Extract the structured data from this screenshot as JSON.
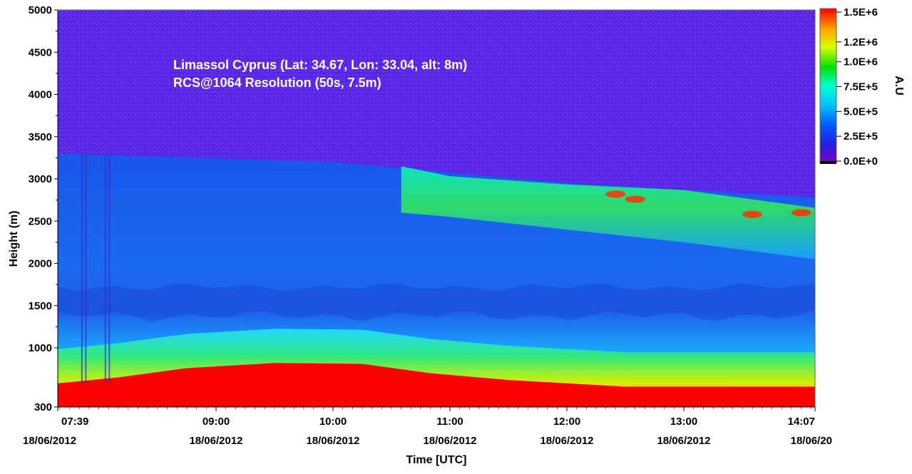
{
  "chart_data": {
    "type": "heatmap",
    "annotation": {
      "line1": "Limassol Cyprus (Lat: 34.67, Lon: 33.04, alt: 8m)",
      "line2": "RCS@1064 Resolution (50s, 7.5m)"
    },
    "xlabel": "Time [UTC]",
    "ylabel": "Height (m)",
    "colorbar_label": "A.U",
    "xlim": [
      "07:39",
      "14:07"
    ],
    "ylim": [
      300,
      5000
    ],
    "x_ticks": [
      {
        "time": "07:39",
        "date": "18/06/2012"
      },
      {
        "time": "09:00",
        "date": "18/06/2012"
      },
      {
        "time": "10:00",
        "date": "18/06/2012"
      },
      {
        "time": "11:00",
        "date": "18/06/2012"
      },
      {
        "time": "12:00",
        "date": "18/06/2012"
      },
      {
        "time": "13:00",
        "date": "18/06/2012"
      },
      {
        "time": "14:07",
        "date": "18/06/20"
      }
    ],
    "y_ticks": [
      5000,
      4500,
      4000,
      3500,
      3000,
      2500,
      2000,
      1500,
      1000,
      300
    ],
    "colorbar_ticks": [
      "1.5E+6",
      "1.2E+6",
      "1.0E+6",
      "7.5E+5",
      "5.0E+5",
      "2.5E+5",
      "0.0E+0"
    ],
    "colorbar_values": [
      1500000,
      1200000,
      1000000,
      750000,
      500000,
      250000,
      0
    ],
    "colorbar_range": [
      0,
      1500000
    ],
    "colorscale": [
      "#8000c0",
      "#2020e0",
      "#0060ff",
      "#00c8ff",
      "#00ffd0",
      "#00e000",
      "#d8ff00",
      "#ffa000",
      "#ff0000"
    ],
    "features": {
      "background_top_color": "#6020e0",
      "lower_layer_top": [
        {
          "time": "07:39",
          "height": 3300
        },
        {
          "time": "10:00",
          "height": 3200
        },
        {
          "time": "12:00",
          "height": 2950
        },
        {
          "time": "14:07",
          "height": 2780
        }
      ],
      "upper_aerosol_layer": [
        {
          "time": "10:35",
          "top": 3150,
          "bottom": 2600
        },
        {
          "time": "11:00",
          "top": 3100,
          "bottom": 2550
        },
        {
          "time": "12:00",
          "top": 2950,
          "bottom": 2400
        },
        {
          "time": "13:00",
          "top": 2850,
          "bottom": 2250
        },
        {
          "time": "14:07",
          "top": 2700,
          "bottom": 2050
        }
      ],
      "saturated_boundary_layer_top": [
        {
          "time": "07:39",
          "height": 580
        },
        {
          "time": "08:10",
          "height": 650
        },
        {
          "time": "08:45",
          "height": 760
        },
        {
          "time": "09:30",
          "height": 820
        },
        {
          "time": "10:15",
          "height": 810
        },
        {
          "time": "10:50",
          "height": 700
        },
        {
          "time": "11:30",
          "height": 620
        },
        {
          "time": "12:30",
          "height": 540
        },
        {
          "time": "13:30",
          "height": 540
        },
        {
          "time": "14:07",
          "height": 540
        }
      ]
    }
  }
}
